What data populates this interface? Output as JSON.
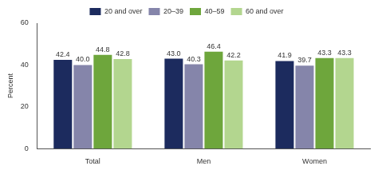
{
  "chart_data": {
    "type": "bar",
    "y_label": "Percent",
    "categories": [
      "Total",
      "Men",
      "Women"
    ],
    "series": [
      {
        "name": "20 and over",
        "color": "#1c2b5e",
        "values": [
          42.4,
          43.0,
          41.9
        ],
        "value_labels": [
          "42.4",
          "43.0",
          "41.9"
        ]
      },
      {
        "name": "20–39",
        "color": "#8585aa",
        "values": [
          40.0,
          40.3,
          39.7
        ],
        "value_labels": [
          "40.0",
          "40.3",
          "39.7"
        ]
      },
      {
        "name": "40–59",
        "color": "#6ea63c",
        "values": [
          44.8,
          46.4,
          43.3
        ],
        "value_labels": [
          "44.8",
          "46.4",
          "43.3"
        ]
      },
      {
        "name": "60 and over",
        "color": "#b3d68f",
        "values": [
          42.8,
          42.2,
          43.3
        ],
        "value_labels": [
          "42.8",
          "42.2",
          "43.3"
        ]
      }
    ],
    "ylim": [
      0,
      60
    ],
    "yticks": [
      0,
      20,
      40,
      60
    ],
    "grid": false,
    "legend": "top",
    "data_labels": true
  }
}
